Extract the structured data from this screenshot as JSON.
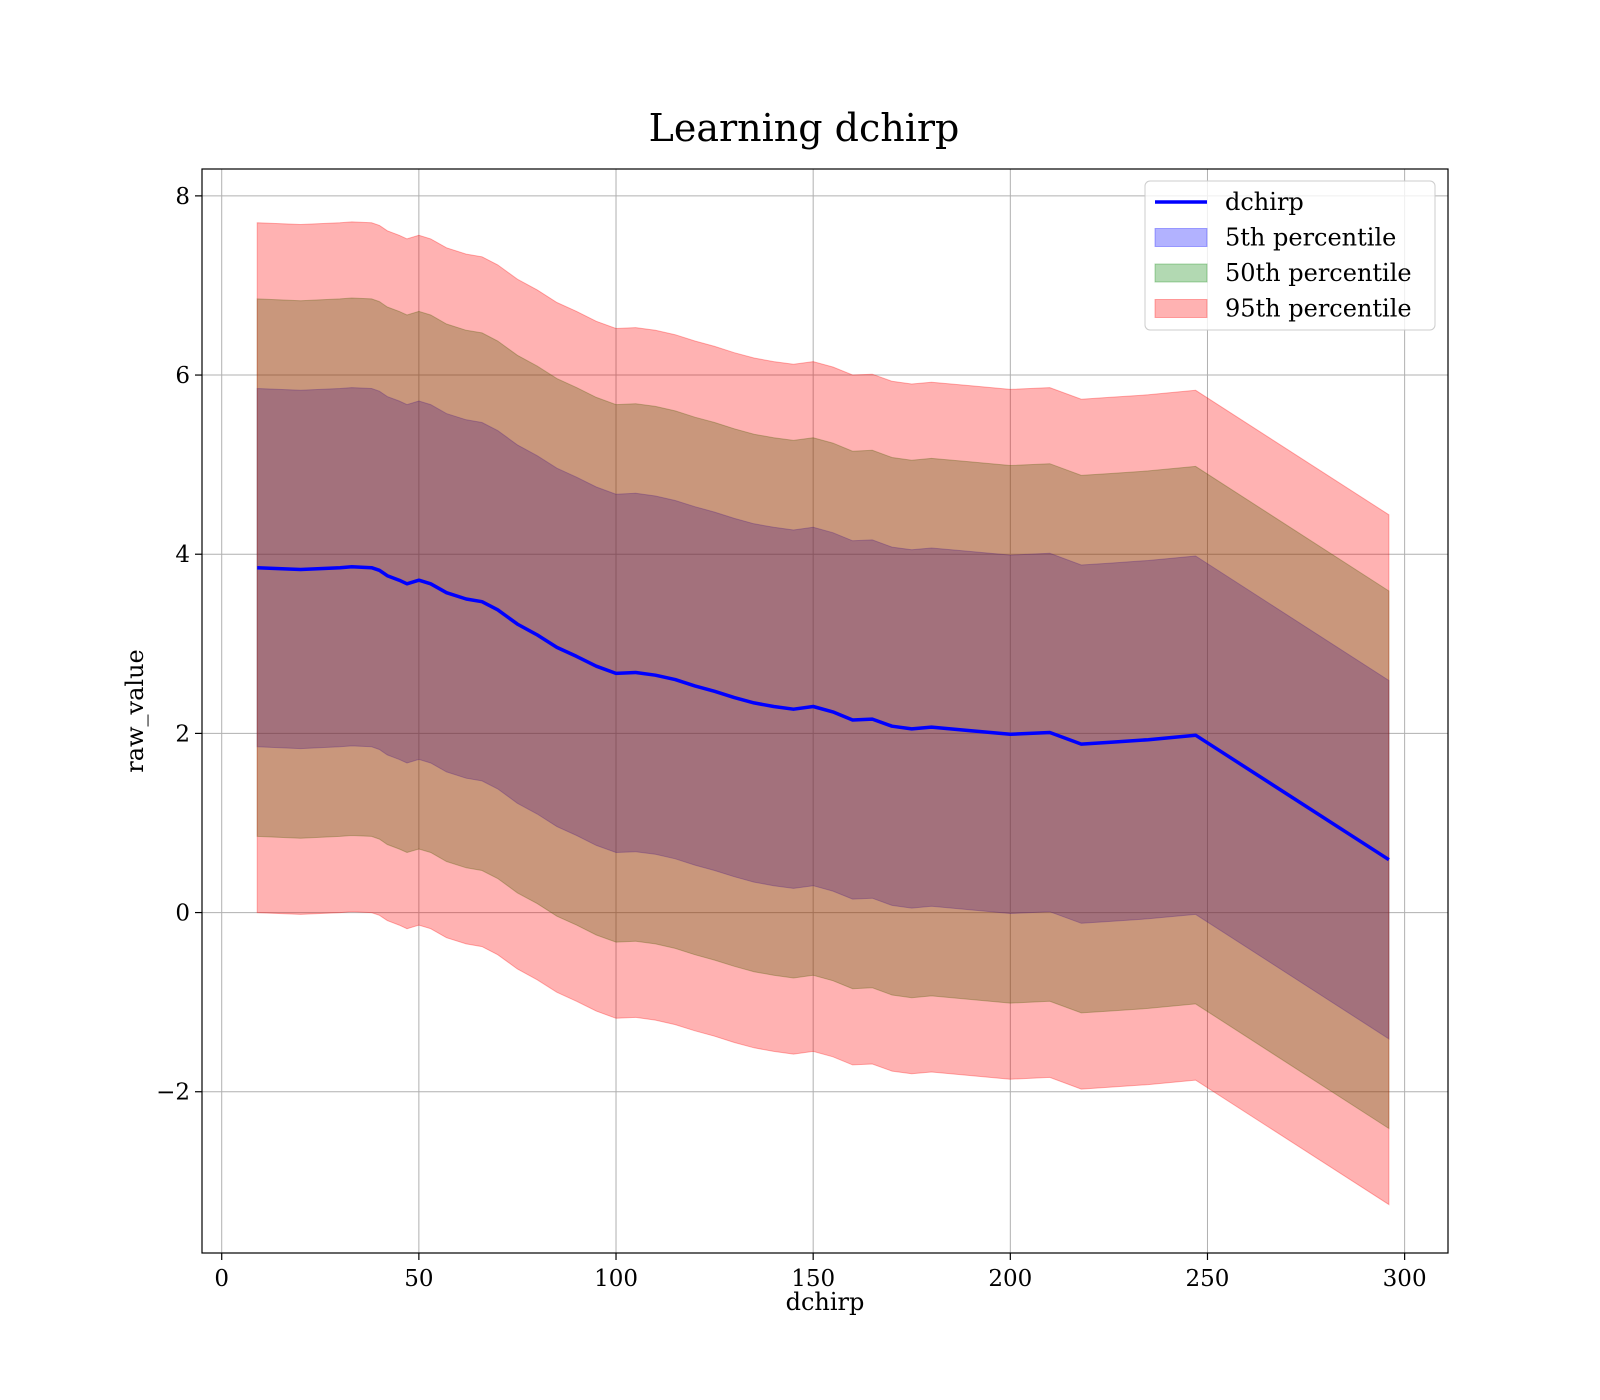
{
  "chart_data": {
    "type": "line",
    "title": "Learning dchirp",
    "xlabel": "dchirp",
    "ylabel": "raw_value",
    "xlim": [
      -5,
      311
    ],
    "ylim": [
      -3.8,
      8.3
    ],
    "xticks": [
      0,
      50,
      100,
      150,
      200,
      250,
      300
    ],
    "yticks": [
      -2,
      0,
      2,
      4,
      6,
      8
    ],
    "xtick_labels": [
      "0",
      "50",
      "100",
      "150",
      "200",
      "250",
      "300"
    ],
    "ytick_labels": [
      "−2",
      "0",
      "2",
      "4",
      "6",
      "8"
    ],
    "grid": true,
    "legend_position": "top-right",
    "series": [
      {
        "name": "dchirp",
        "kind": "line",
        "color": "#0000ff",
        "x": [
          9,
          20,
          30,
          33,
          38,
          40,
          42,
          45,
          47,
          50,
          53,
          57,
          62,
          66,
          70,
          75,
          80,
          85,
          90,
          95,
          100,
          105,
          110,
          115,
          120,
          125,
          130,
          135,
          140,
          145,
          150,
          155,
          160,
          165,
          170,
          175,
          180,
          190,
          200,
          210,
          218,
          225,
          235,
          247,
          296
        ],
        "y": [
          3.85,
          3.83,
          3.85,
          3.86,
          3.85,
          3.82,
          3.76,
          3.71,
          3.67,
          3.71,
          3.67,
          3.57,
          3.5,
          3.47,
          3.38,
          3.22,
          3.1,
          2.96,
          2.86,
          2.75,
          2.67,
          2.68,
          2.65,
          2.6,
          2.53,
          2.47,
          2.4,
          2.34,
          2.3,
          2.27,
          2.3,
          2.24,
          2.15,
          2.16,
          2.08,
          2.05,
          2.07,
          2.03,
          1.99,
          2.01,
          1.88,
          1.9,
          1.93,
          1.98,
          0.59
        ]
      },
      {
        "name": "5th percentile",
        "kind": "band",
        "color": "#0000ff",
        "offset": 2.0
      },
      {
        "name": "50th percentile",
        "kind": "band",
        "color": "#008000",
        "offset": 3.0
      },
      {
        "name": "95th percentile",
        "kind": "band",
        "color": "#ff0000",
        "offset": 3.85
      }
    ]
  }
}
